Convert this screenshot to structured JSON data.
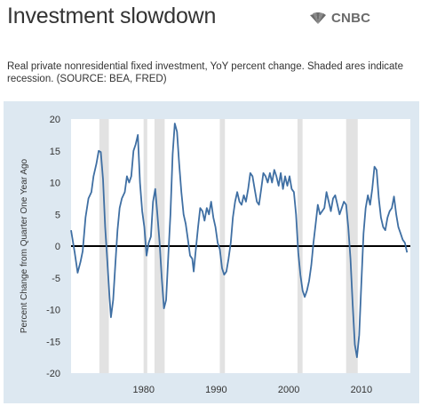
{
  "header": {
    "title": "Investment slowdown",
    "brand": "CNBC",
    "subtitle": "Real private nonresidential fixed investment, YoY percent change. Shaded ares indicate recession. (SOURCE: BEA, FRED)"
  },
  "colors": {
    "background": "#dde8f1",
    "plot_background": "#ffffff",
    "recession_shade": "#e2e2e2",
    "line": "#3f6fa3",
    "zero_line": "#000000"
  },
  "icons": {
    "brand_logo": "peacock-icon"
  },
  "chart_data": {
    "type": "line",
    "title": "",
    "xlabel": "",
    "ylabel": "Percent Change from Quarter One Year Ago",
    "xlim": [
      1970.0,
      2016.75
    ],
    "ylim": [
      -20,
      20
    ],
    "x_ticks": [
      1980,
      1990,
      2000,
      2010
    ],
    "y_ticks": [
      -20,
      -15,
      -10,
      -5,
      0,
      5,
      10,
      15,
      20
    ],
    "grid": false,
    "zero_line": true,
    "recessions": [
      [
        1973.9,
        1975.2
      ],
      [
        1980.0,
        1980.5
      ],
      [
        1981.5,
        1982.9
      ],
      [
        1990.5,
        1991.2
      ],
      [
        2001.2,
        2001.9
      ],
      [
        2007.9,
        2009.5
      ]
    ],
    "series": [
      {
        "name": "",
        "points": [
          [
            1970.0,
            2.5
          ],
          [
            1970.5,
            -1.0
          ],
          [
            1970.9,
            -4.2
          ],
          [
            1971.3,
            -2.5
          ],
          [
            1971.6,
            -0.8
          ],
          [
            1972.0,
            4.5
          ],
          [
            1972.4,
            7.5
          ],
          [
            1972.8,
            8.5
          ],
          [
            1973.1,
            11.0
          ],
          [
            1973.5,
            13.0
          ],
          [
            1973.8,
            15.0
          ],
          [
            1974.1,
            14.8
          ],
          [
            1974.4,
            10.5
          ],
          [
            1974.7,
            3.0
          ],
          [
            1975.0,
            -2.5
          ],
          [
            1975.3,
            -8.0
          ],
          [
            1975.5,
            -11.2
          ],
          [
            1975.8,
            -8.5
          ],
          [
            1976.1,
            -3.0
          ],
          [
            1976.4,
            2.5
          ],
          [
            1976.7,
            6.0
          ],
          [
            1977.0,
            7.5
          ],
          [
            1977.4,
            8.5
          ],
          [
            1977.7,
            11.0
          ],
          [
            1978.0,
            10.0
          ],
          [
            1978.3,
            11.0
          ],
          [
            1978.6,
            15.0
          ],
          [
            1978.9,
            16.0
          ],
          [
            1979.2,
            17.5
          ],
          [
            1979.5,
            10.0
          ],
          [
            1979.8,
            5.5
          ],
          [
            1980.1,
            3.0
          ],
          [
            1980.4,
            -1.5
          ],
          [
            1980.7,
            0.5
          ],
          [
            1981.0,
            1.5
          ],
          [
            1981.3,
            7.0
          ],
          [
            1981.6,
            9.0
          ],
          [
            1981.9,
            5.0
          ],
          [
            1982.2,
            0.5
          ],
          [
            1982.5,
            -5.0
          ],
          [
            1982.8,
            -9.8
          ],
          [
            1983.1,
            -8.5
          ],
          [
            1983.4,
            -1.5
          ],
          [
            1983.7,
            5.0
          ],
          [
            1984.0,
            14.5
          ],
          [
            1984.3,
            19.3
          ],
          [
            1984.6,
            18.0
          ],
          [
            1984.9,
            13.0
          ],
          [
            1985.2,
            8.5
          ],
          [
            1985.5,
            5.0
          ],
          [
            1985.8,
            3.5
          ],
          [
            1986.1,
            1.0
          ],
          [
            1986.4,
            -1.5
          ],
          [
            1986.7,
            -2.0
          ],
          [
            1986.9,
            -4.0
          ],
          [
            1987.2,
            -0.5
          ],
          [
            1987.5,
            3.0
          ],
          [
            1987.8,
            6.0
          ],
          [
            1988.1,
            5.5
          ],
          [
            1988.4,
            4.0
          ],
          [
            1988.7,
            6.0
          ],
          [
            1989.0,
            5.0
          ],
          [
            1989.3,
            7.0
          ],
          [
            1989.6,
            4.5
          ],
          [
            1989.9,
            3.0
          ],
          [
            1990.2,
            0.5
          ],
          [
            1990.5,
            -0.5
          ],
          [
            1990.8,
            -3.5
          ],
          [
            1991.1,
            -4.5
          ],
          [
            1991.4,
            -4.0
          ],
          [
            1991.7,
            -2.0
          ],
          [
            1992.0,
            0.5
          ],
          [
            1992.3,
            4.5
          ],
          [
            1992.6,
            7.0
          ],
          [
            1992.9,
            8.5
          ],
          [
            1993.2,
            7.0
          ],
          [
            1993.5,
            6.5
          ],
          [
            1993.8,
            8.0
          ],
          [
            1994.1,
            7.0
          ],
          [
            1994.4,
            9.0
          ],
          [
            1994.7,
            11.5
          ],
          [
            1995.0,
            11.0
          ],
          [
            1995.3,
            9.0
          ],
          [
            1995.6,
            7.0
          ],
          [
            1995.9,
            6.5
          ],
          [
            1996.2,
            9.0
          ],
          [
            1996.5,
            11.5
          ],
          [
            1996.8,
            11.0
          ],
          [
            1997.1,
            10.0
          ],
          [
            1997.4,
            11.5
          ],
          [
            1997.7,
            10.0
          ],
          [
            1998.0,
            12.0
          ],
          [
            1998.3,
            11.0
          ],
          [
            1998.6,
            9.5
          ],
          [
            1998.9,
            11.5
          ],
          [
            1999.2,
            9.0
          ],
          [
            1999.5,
            11.0
          ],
          [
            1999.8,
            9.5
          ],
          [
            2000.1,
            11.0
          ],
          [
            2000.4,
            9.0
          ],
          [
            2000.7,
            8.5
          ],
          [
            2001.0,
            5.0
          ],
          [
            2001.3,
            -1.0
          ],
          [
            2001.6,
            -4.5
          ],
          [
            2001.9,
            -7.0
          ],
          [
            2002.2,
            -8.0
          ],
          [
            2002.5,
            -7.0
          ],
          [
            2002.8,
            -5.5
          ],
          [
            2003.1,
            -3.0
          ],
          [
            2003.4,
            0.5
          ],
          [
            2003.7,
            3.5
          ],
          [
            2004.0,
            6.5
          ],
          [
            2004.3,
            5.0
          ],
          [
            2004.6,
            5.5
          ],
          [
            2004.9,
            6.0
          ],
          [
            2005.2,
            8.5
          ],
          [
            2005.5,
            7.0
          ],
          [
            2005.8,
            5.5
          ],
          [
            2006.1,
            7.5
          ],
          [
            2006.4,
            8.0
          ],
          [
            2006.7,
            6.5
          ],
          [
            2007.0,
            5.0
          ],
          [
            2007.3,
            6.0
          ],
          [
            2007.6,
            7.0
          ],
          [
            2007.9,
            6.5
          ],
          [
            2008.2,
            3.0
          ],
          [
            2008.5,
            -2.0
          ],
          [
            2008.8,
            -9.0
          ],
          [
            2009.1,
            -15.5
          ],
          [
            2009.4,
            -17.5
          ],
          [
            2009.7,
            -14.0
          ],
          [
            2010.0,
            -6.0
          ],
          [
            2010.3,
            2.0
          ],
          [
            2010.6,
            6.0
          ],
          [
            2010.9,
            8.0
          ],
          [
            2011.2,
            6.5
          ],
          [
            2011.5,
            9.0
          ],
          [
            2011.8,
            12.5
          ],
          [
            2012.1,
            12.0
          ],
          [
            2012.4,
            7.5
          ],
          [
            2012.7,
            4.5
          ],
          [
            2013.0,
            3.0
          ],
          [
            2013.3,
            2.5
          ],
          [
            2013.6,
            4.5
          ],
          [
            2013.9,
            5.5
          ],
          [
            2014.2,
            6.0
          ],
          [
            2014.5,
            7.8
          ],
          [
            2014.8,
            5.0
          ],
          [
            2015.1,
            3.0
          ],
          [
            2015.4,
            2.0
          ],
          [
            2015.7,
            1.0
          ],
          [
            2016.0,
            0.5
          ],
          [
            2016.3,
            -1.0
          ]
        ]
      }
    ]
  }
}
